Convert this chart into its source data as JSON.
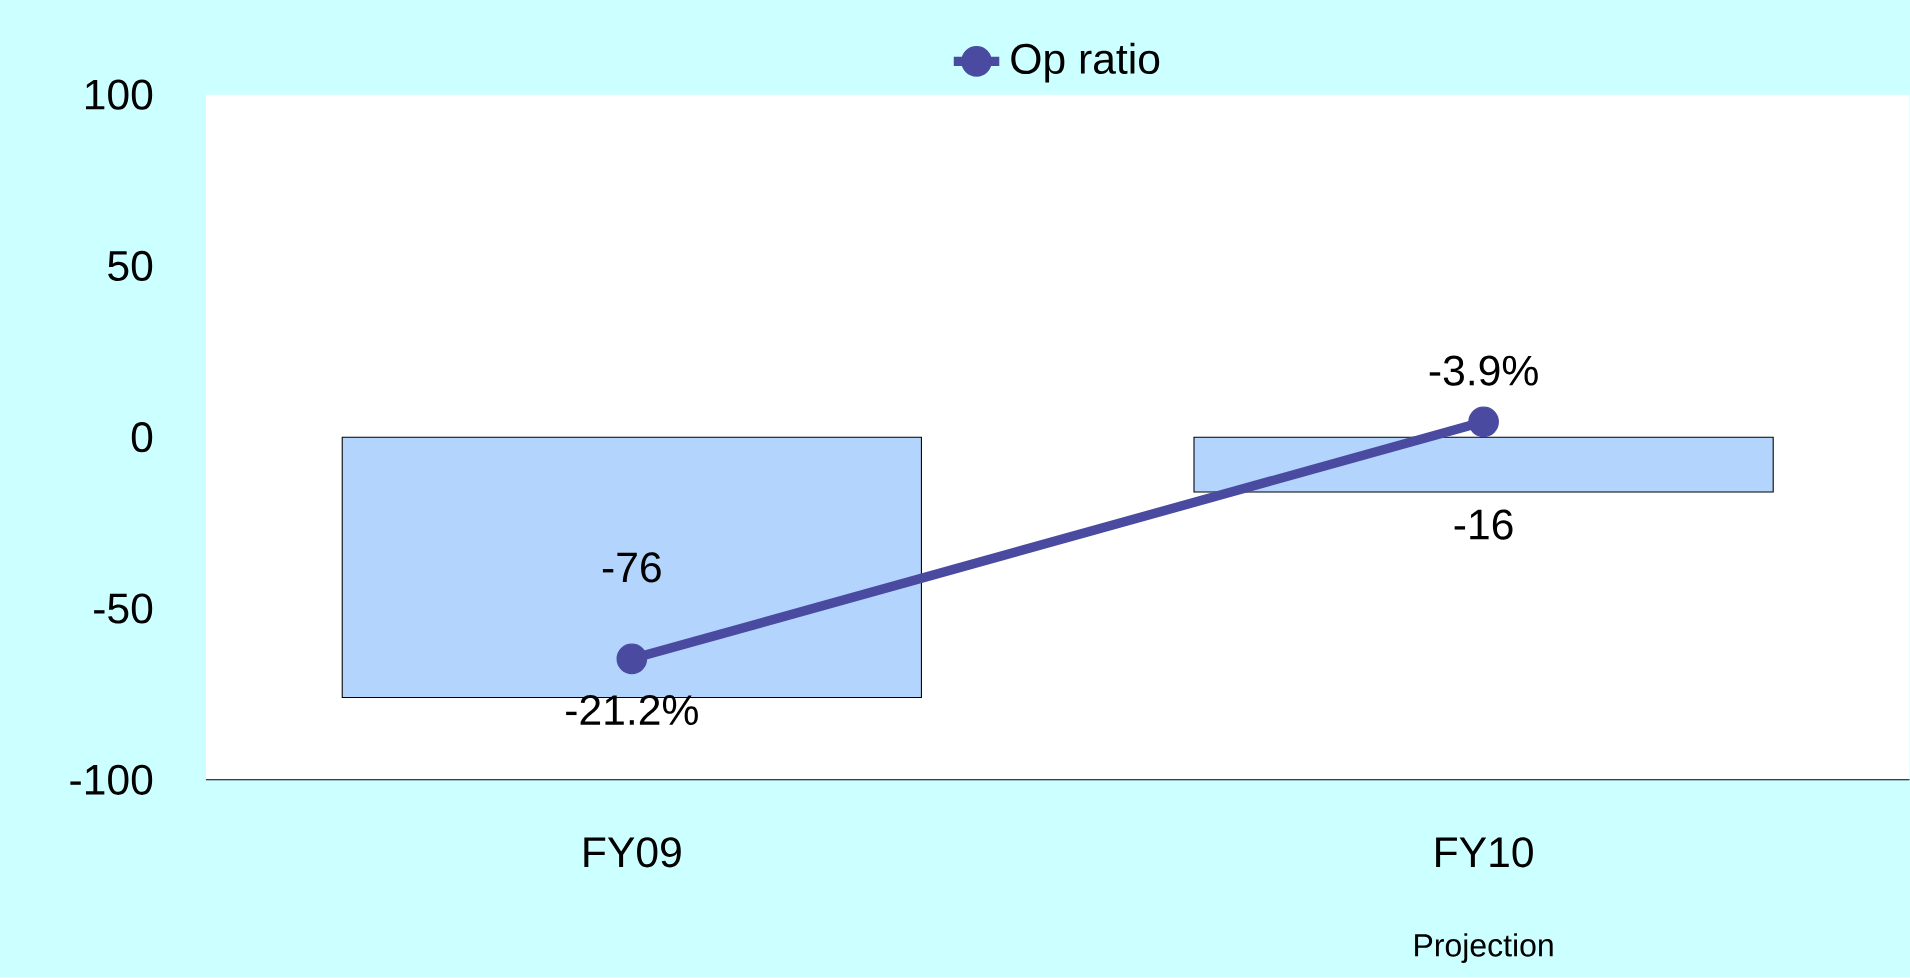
{
  "chart_data": {
    "type": "bar",
    "categories": [
      "FY09",
      "FY10"
    ],
    "ylim": [
      -100,
      100
    ],
    "yticks": [
      -100,
      -50,
      0,
      50,
      100
    ],
    "legend": "top",
    "grid": false,
    "marker": "circle",
    "data_labels": true,
    "annotations": [
      "Projection"
    ],
    "series": [
      {
        "color": "#b3d4fc",
        "values": [
          -76,
          -16
        ]
      },
      {
        "type": "line",
        "name": "Op ratio",
        "axis": "y2",
        "color": "#4a4aa0",
        "values": [
          -21.2,
          -3.9
        ],
        "value_labels": [
          "-21.2%",
          "-3.9%"
        ]
      }
    ]
  }
}
